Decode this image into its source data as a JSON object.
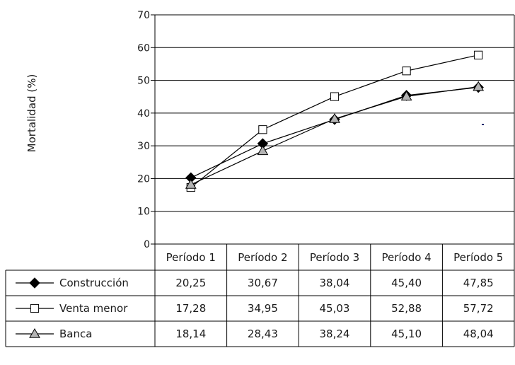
{
  "chart_data": {
    "type": "line",
    "ylabel": "Mortalidad (%)",
    "ylim": [
      0,
      70
    ],
    "yticks": [
      0,
      10,
      20,
      30,
      40,
      50,
      60,
      70
    ],
    "categories": [
      "Período 1",
      "Período 2",
      "Período 3",
      "Período 4",
      "Período 5"
    ],
    "grid": true,
    "legend": "data-table-below",
    "series": [
      {
        "name": "Construcción",
        "marker": "diamond",
        "marker_fill": "#000000",
        "values": [
          20.25,
          30.67,
          38.04,
          45.4,
          47.85
        ],
        "labels": [
          "20,25",
          "30,67",
          "38,04",
          "45,40",
          "47,85"
        ]
      },
      {
        "name": "Venta menor",
        "marker": "square",
        "marker_fill": "#ffffff",
        "values": [
          17.28,
          34.95,
          45.03,
          52.88,
          57.72
        ],
        "labels": [
          "17,28",
          "34,95",
          "45,03",
          "52,88",
          "57,72"
        ]
      },
      {
        "name": "Banca",
        "marker": "triangle",
        "marker_fill": "#b3b3b3",
        "values": [
          18.14,
          28.43,
          38.24,
          45.1,
          48.04
        ],
        "labels": [
          "18,14",
          "28,43",
          "38,24",
          "45,10",
          "48,04"
        ]
      }
    ]
  }
}
